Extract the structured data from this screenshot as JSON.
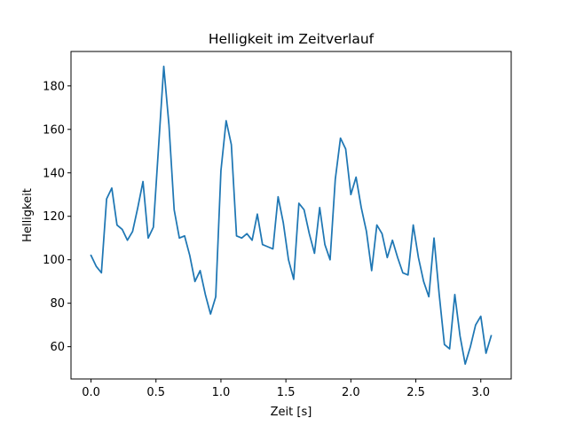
{
  "chart_data": {
    "type": "line",
    "title": "Helligkeit im Zeitverlauf",
    "xlabel": "Zeit [s]",
    "ylabel": "Helligkeit",
    "xlim": [
      -0.154,
      3.234
    ],
    "ylim": [
      45.15,
      195.85
    ],
    "x_ticks": [
      0.0,
      0.5,
      1.0,
      1.5,
      2.0,
      2.5,
      3.0
    ],
    "x_tick_labels": [
      "0.0",
      "0.5",
      "1.0",
      "1.5",
      "2.0",
      "2.5",
      "3.0"
    ],
    "y_ticks": [
      60,
      80,
      100,
      120,
      140,
      160,
      180
    ],
    "y_tick_labels": [
      "60",
      "80",
      "100",
      "120",
      "140",
      "160",
      "180"
    ],
    "grid": false,
    "legend": "none",
    "colors": {
      "line": "#1f77b4",
      "axes": "#000000",
      "background": "#ffffff"
    },
    "series": [
      {
        "x": [
          0.0,
          0.04,
          0.08,
          0.12,
          0.16,
          0.2,
          0.24,
          0.28,
          0.32,
          0.36,
          0.4,
          0.44,
          0.48,
          0.52,
          0.56,
          0.6,
          0.64,
          0.68,
          0.72,
          0.76,
          0.8,
          0.84,
          0.88,
          0.92,
          0.96,
          1.0,
          1.04,
          1.08,
          1.12,
          1.16,
          1.2,
          1.24,
          1.28,
          1.32,
          1.36,
          1.4,
          1.44,
          1.48,
          1.52,
          1.56,
          1.6,
          1.64,
          1.68,
          1.72,
          1.76,
          1.8,
          1.84,
          1.88,
          1.92,
          1.96,
          2.0,
          2.04,
          2.08,
          2.12,
          2.16,
          2.2,
          2.24,
          2.28,
          2.32,
          2.36,
          2.4,
          2.44,
          2.48,
          2.52,
          2.56,
          2.6,
          2.64,
          2.68,
          2.72,
          2.76,
          2.8,
          2.84,
          2.88,
          2.92,
          2.96,
          3.0,
          3.04,
          3.08
        ],
        "values": [
          102,
          97,
          94,
          128,
          133,
          116,
          114,
          109,
          113,
          124,
          136,
          110,
          115,
          152,
          189,
          162,
          123,
          110,
          111,
          102,
          90,
          95,
          84,
          75,
          83,
          141,
          164,
          153,
          111,
          110,
          112,
          109,
          121,
          107,
          106,
          105,
          129,
          117,
          100,
          91,
          126,
          123,
          112,
          103,
          124,
          107,
          100,
          137,
          156,
          151,
          130,
          138,
          124,
          113,
          95,
          116,
          112,
          101,
          109,
          101,
          94,
          93,
          116,
          101,
          90,
          83,
          110,
          84,
          61,
          59,
          84,
          65,
          52,
          60,
          70,
          74,
          57,
          65
        ]
      }
    ]
  }
}
